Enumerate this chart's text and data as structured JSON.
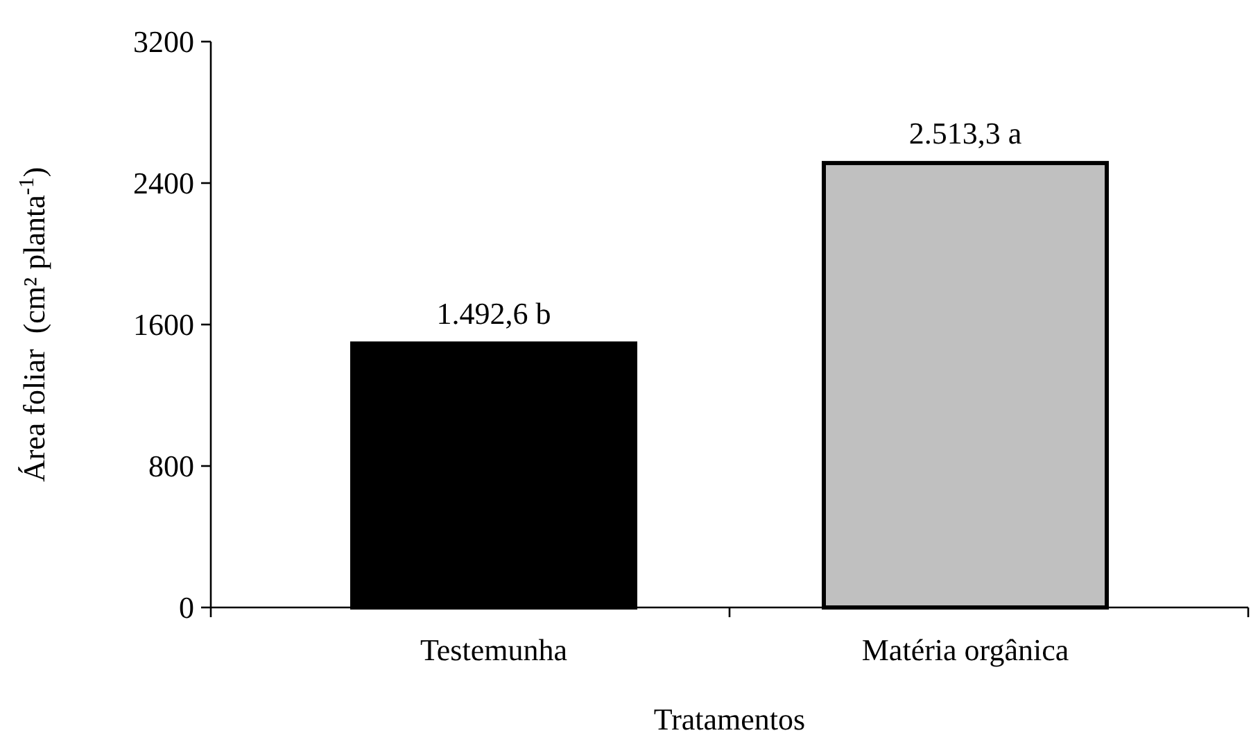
{
  "chart_data": {
    "type": "bar",
    "xlabel": "Tratamentos",
    "ylabel": "Área foliar  (cm² planta$^{-1}$)",
    "categories": [
      "Testemunha",
      "Matéria orgânica"
    ],
    "values": [
      1492.6,
      2513.3
    ],
    "colors": [
      "#000000",
      "#c0c0c0"
    ],
    "value_labels": [
      "1.492,6 b",
      "2.513,3 a"
    ],
    "ylim": [
      0,
      3200
    ],
    "yticks": [
      0,
      800,
      1600,
      2400,
      3200
    ],
    "grid": false
  }
}
